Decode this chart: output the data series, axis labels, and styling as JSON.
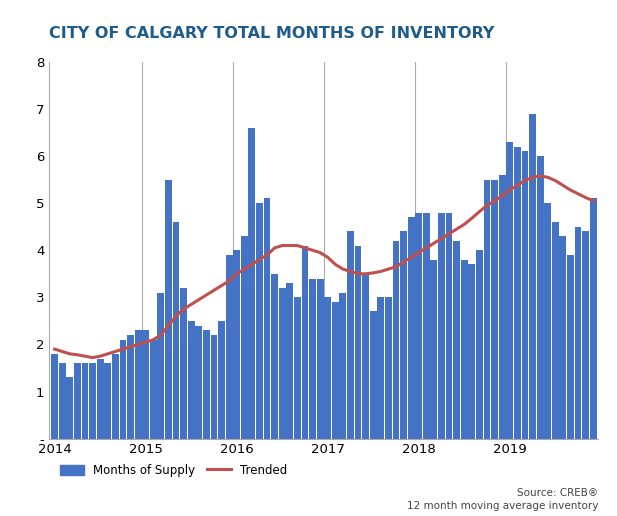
{
  "title": "CITY OF CALGARY TOTAL MONTHS OF INVENTORY",
  "bar_color": "#4472C4",
  "trend_color": "#C0504D",
  "background_color": "#FFFFFF",
  "plot_bg_color": "#FFFFFF",
  "ylim": [
    0,
    8
  ],
  "yticks": [
    0,
    1,
    2,
    3,
    4,
    5,
    6,
    7,
    8
  ],
  "ytick_labels": [
    "-",
    "1",
    "2",
    "3",
    "4",
    "5",
    "6",
    "7",
    "8"
  ],
  "source_text": "Source: CREB®\n12 month moving average inventory",
  "legend_bar_label": "Months of Supply",
  "legend_line_label": "Trended",
  "months_of_supply": [
    1.8,
    1.6,
    1.3,
    1.6,
    1.6,
    1.6,
    1.7,
    1.6,
    1.8,
    2.1,
    2.2,
    2.3,
    2.3,
    2.1,
    3.1,
    5.5,
    4.6,
    3.2,
    2.5,
    2.4,
    2.3,
    2.2,
    2.5,
    3.9,
    4.0,
    4.3,
    6.6,
    5.0,
    5.1,
    3.5,
    3.2,
    3.3,
    3.0,
    4.1,
    3.4,
    3.4,
    3.0,
    2.9,
    3.1,
    4.4,
    4.1,
    3.5,
    2.7,
    3.0,
    3.0,
    4.2,
    4.4,
    4.7,
    4.8,
    4.8,
    3.8,
    4.8,
    4.8,
    4.2,
    3.8,
    3.7,
    4.0,
    5.5,
    5.5,
    5.6,
    6.3,
    6.2,
    6.1,
    6.9,
    6.0,
    5.0,
    4.6,
    4.3,
    3.9,
    4.5,
    4.4,
    5.1
  ],
  "trend_values": [
    1.9,
    1.85,
    1.8,
    1.78,
    1.75,
    1.72,
    1.75,
    1.8,
    1.85,
    1.9,
    1.95,
    2.0,
    2.05,
    2.1,
    2.2,
    2.4,
    2.6,
    2.75,
    2.85,
    2.95,
    3.05,
    3.15,
    3.25,
    3.35,
    3.5,
    3.6,
    3.7,
    3.8,
    3.9,
    4.05,
    4.1,
    4.1,
    4.1,
    4.05,
    4.0,
    3.95,
    3.85,
    3.7,
    3.6,
    3.55,
    3.5,
    3.5,
    3.52,
    3.55,
    3.6,
    3.65,
    3.75,
    3.85,
    3.95,
    4.05,
    4.15,
    4.25,
    4.35,
    4.45,
    4.55,
    4.68,
    4.82,
    4.95,
    5.05,
    5.15,
    5.28,
    5.38,
    5.48,
    5.55,
    5.58,
    5.55,
    5.48,
    5.38,
    5.28,
    5.2,
    5.12,
    5.05
  ],
  "n_bars": 72,
  "year_tick_positions": [
    0,
    12,
    24,
    36,
    48,
    60
  ],
  "year_labels": [
    "2014",
    "2015",
    "2016",
    "2017",
    "2018",
    "2019"
  ],
  "title_color": "#1F5C8B",
  "title_fontsize": 11.5,
  "grid_color": "#888888",
  "vline_positions": [
    11.5,
    23.5,
    35.5,
    47.5,
    59.5
  ]
}
